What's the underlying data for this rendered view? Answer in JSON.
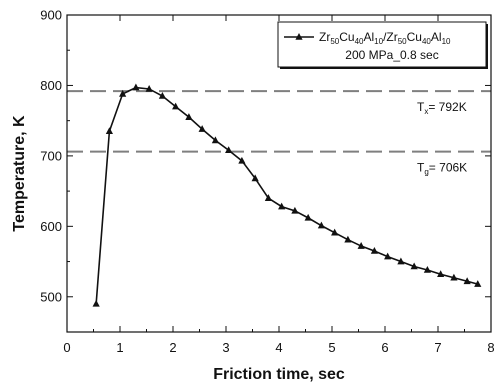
{
  "chart_data": {
    "type": "line",
    "xlabel": "Friction time, sec",
    "ylabel": "Temperature, K",
    "xlim": [
      0,
      8
    ],
    "ylim": [
      450,
      900
    ],
    "xticks": [
      0,
      1,
      2,
      3,
      4,
      5,
      6,
      7,
      8
    ],
    "yticks": [
      500,
      600,
      700,
      800,
      900
    ],
    "grid": false,
    "legend_position": "top-right",
    "series": [
      {
        "name": "Zr50Cu40Al10/Zr50Cu40Al10",
        "name_parts": [
          {
            "t": "Zr",
            "sub": false
          },
          {
            "t": "50",
            "sub": true
          },
          {
            "t": "Cu",
            "sub": false
          },
          {
            "t": "40",
            "sub": true
          },
          {
            "t": "Al",
            "sub": false
          },
          {
            "t": "10",
            "sub": true
          },
          {
            "t": "/Zr",
            "sub": false
          },
          {
            "t": "50",
            "sub": true
          },
          {
            "t": "Cu",
            "sub": false
          },
          {
            "t": "40",
            "sub": true
          },
          {
            "t": "Al",
            "sub": false
          },
          {
            "t": "10",
            "sub": true
          }
        ],
        "subtitle": "200 MPa_0.8 sec",
        "marker": "triangle",
        "color": "#111111",
        "x": [
          0.55,
          0.8,
          1.05,
          1.3,
          1.55,
          1.8,
          2.05,
          2.3,
          2.55,
          2.8,
          3.05,
          3.3,
          3.55,
          3.8,
          4.05,
          4.3,
          4.55,
          4.8,
          5.05,
          5.3,
          5.55,
          5.8,
          6.05,
          6.3,
          6.55,
          6.8,
          7.05,
          7.3,
          7.55,
          7.75
        ],
        "y": [
          490,
          735,
          788,
          797,
          795,
          785,
          770,
          755,
          738,
          722,
          708,
          693,
          668,
          640,
          628,
          622,
          612,
          601,
          591,
          581,
          572,
          565,
          557,
          550,
          543,
          538,
          532,
          527,
          522,
          518
        ]
      }
    ],
    "reference_lines": [
      {
        "y": 792,
        "label_main": "T",
        "label_sub": "x",
        "label_rest": "= 792K",
        "style": "dashed",
        "color": "#7f7f7f"
      },
      {
        "y": 706,
        "label_main": "T",
        "label_sub": "g",
        "label_rest": "= 706K",
        "style": "dashed",
        "color": "#7f7f7f"
      }
    ]
  }
}
